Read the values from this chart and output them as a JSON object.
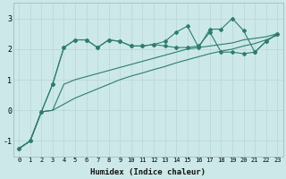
{
  "xlabel": "Humidex (Indice chaleur)",
  "bg_color": "#cce8e8",
  "grid_color": "#b8d4d4",
  "line_color": "#2e7d6e",
  "xlim": [
    -0.5,
    23.5
  ],
  "ylim": [
    -1.5,
    3.5
  ],
  "xticks": [
    0,
    1,
    2,
    3,
    4,
    5,
    6,
    7,
    8,
    9,
    10,
    11,
    12,
    13,
    14,
    15,
    16,
    17,
    18,
    19,
    20,
    21,
    22,
    23
  ],
  "yticks": [
    -1,
    0,
    1,
    2,
    3
  ],
  "series": {
    "line1_x": [
      0,
      1,
      2,
      3,
      4,
      5,
      6,
      7,
      8,
      9,
      10,
      11,
      12,
      13,
      14,
      15,
      16,
      17,
      18,
      19,
      20,
      21,
      22,
      23
    ],
    "line1_y": [
      -1.25,
      -1.0,
      -0.05,
      0.85,
      2.05,
      2.3,
      2.3,
      2.05,
      2.3,
      2.25,
      2.1,
      2.1,
      2.15,
      2.25,
      2.55,
      2.75,
      2.05,
      2.65,
      2.65,
      3.0,
      2.6,
      1.9,
      2.25,
      2.5
    ],
    "line2_x": [
      0,
      1,
      2,
      3,
      4,
      5,
      6,
      7,
      8,
      9,
      10,
      11,
      12,
      13,
      14,
      15,
      16,
      17,
      18,
      19,
      20,
      21,
      22,
      23
    ],
    "line2_y": [
      -1.25,
      -1.0,
      -0.05,
      0.85,
      2.05,
      2.3,
      2.3,
      2.05,
      2.3,
      2.25,
      2.1,
      2.1,
      2.15,
      2.1,
      2.05,
      2.05,
      2.1,
      2.55,
      1.9,
      1.9,
      1.85,
      1.9,
      2.25,
      2.5
    ],
    "line3_x": [
      0,
      1,
      2,
      3,
      4,
      5,
      6,
      7,
      8,
      9,
      10,
      11,
      12,
      13,
      14,
      15,
      16,
      17,
      18,
      19,
      20,
      21,
      22,
      23
    ],
    "line3_y": [
      -1.25,
      -1.0,
      -0.05,
      0.0,
      0.85,
      1.0,
      1.1,
      1.2,
      1.3,
      1.4,
      1.5,
      1.6,
      1.7,
      1.8,
      1.9,
      2.0,
      2.05,
      2.1,
      2.15,
      2.2,
      2.3,
      2.35,
      2.4,
      2.5
    ],
    "line4_x": [
      0,
      1,
      2,
      3,
      4,
      5,
      6,
      7,
      8,
      9,
      10,
      11,
      12,
      13,
      14,
      15,
      16,
      17,
      18,
      19,
      20,
      21,
      22,
      23
    ],
    "line4_y": [
      -1.25,
      -1.0,
      -0.05,
      0.0,
      0.2,
      0.4,
      0.55,
      0.7,
      0.85,
      1.0,
      1.12,
      1.22,
      1.33,
      1.43,
      1.55,
      1.65,
      1.75,
      1.85,
      1.93,
      2.0,
      2.1,
      2.18,
      2.3,
      2.45
    ]
  }
}
